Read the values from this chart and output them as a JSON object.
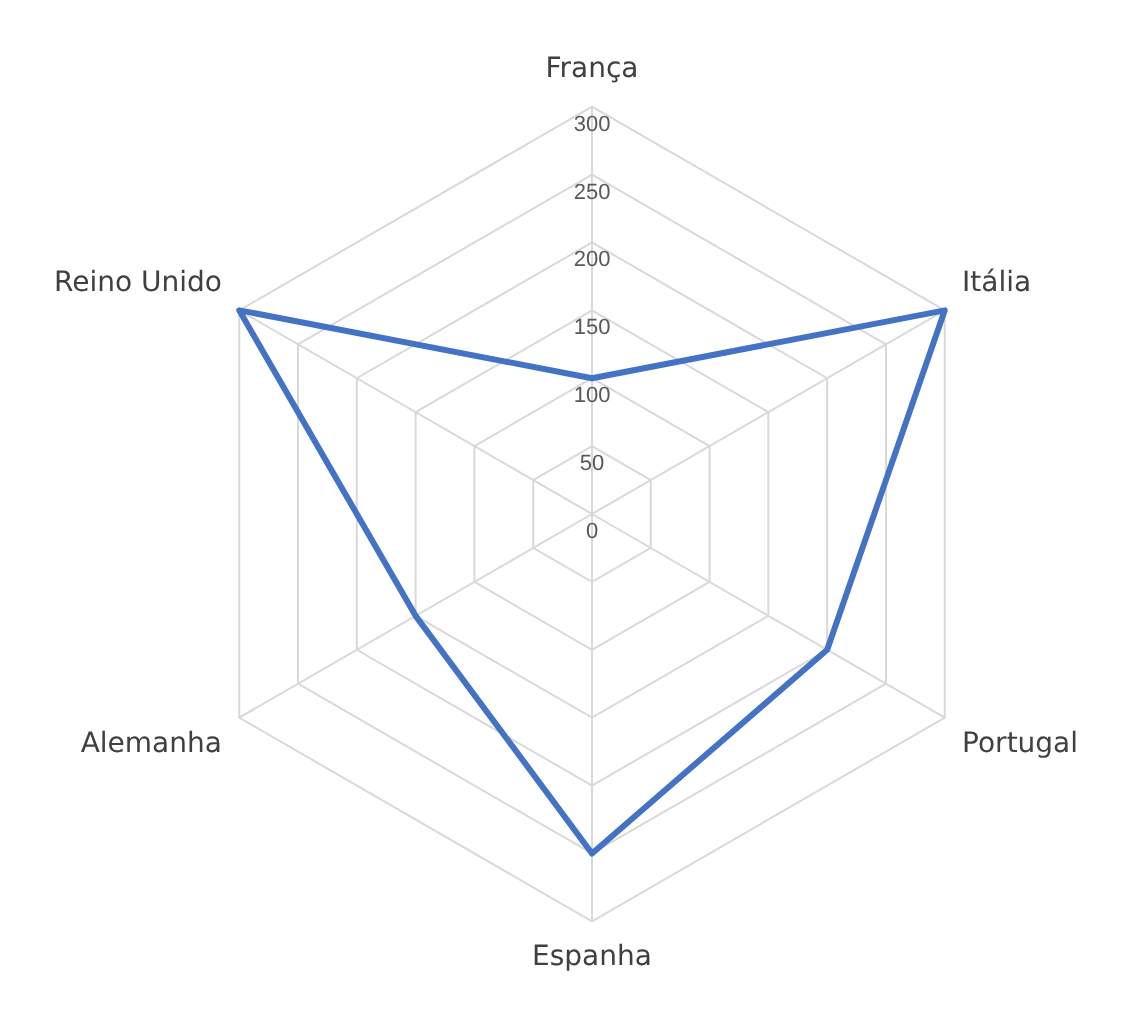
{
  "chart_data": {
    "type": "radar",
    "categories": [
      "França",
      "Itália",
      "Portugal",
      "Espanha",
      "Alemanha",
      "Reino Unido"
    ],
    "series": [
      {
        "color": "#4472c4",
        "values": [
          100,
          300,
          200,
          250,
          150,
          300
        ]
      }
    ],
    "ylim": [
      0,
      300
    ],
    "yticks": [
      0,
      50,
      100,
      150,
      200,
      250,
      300
    ],
    "grid": true,
    "legend": false,
    "marker": "none",
    "line_style": "solid"
  }
}
